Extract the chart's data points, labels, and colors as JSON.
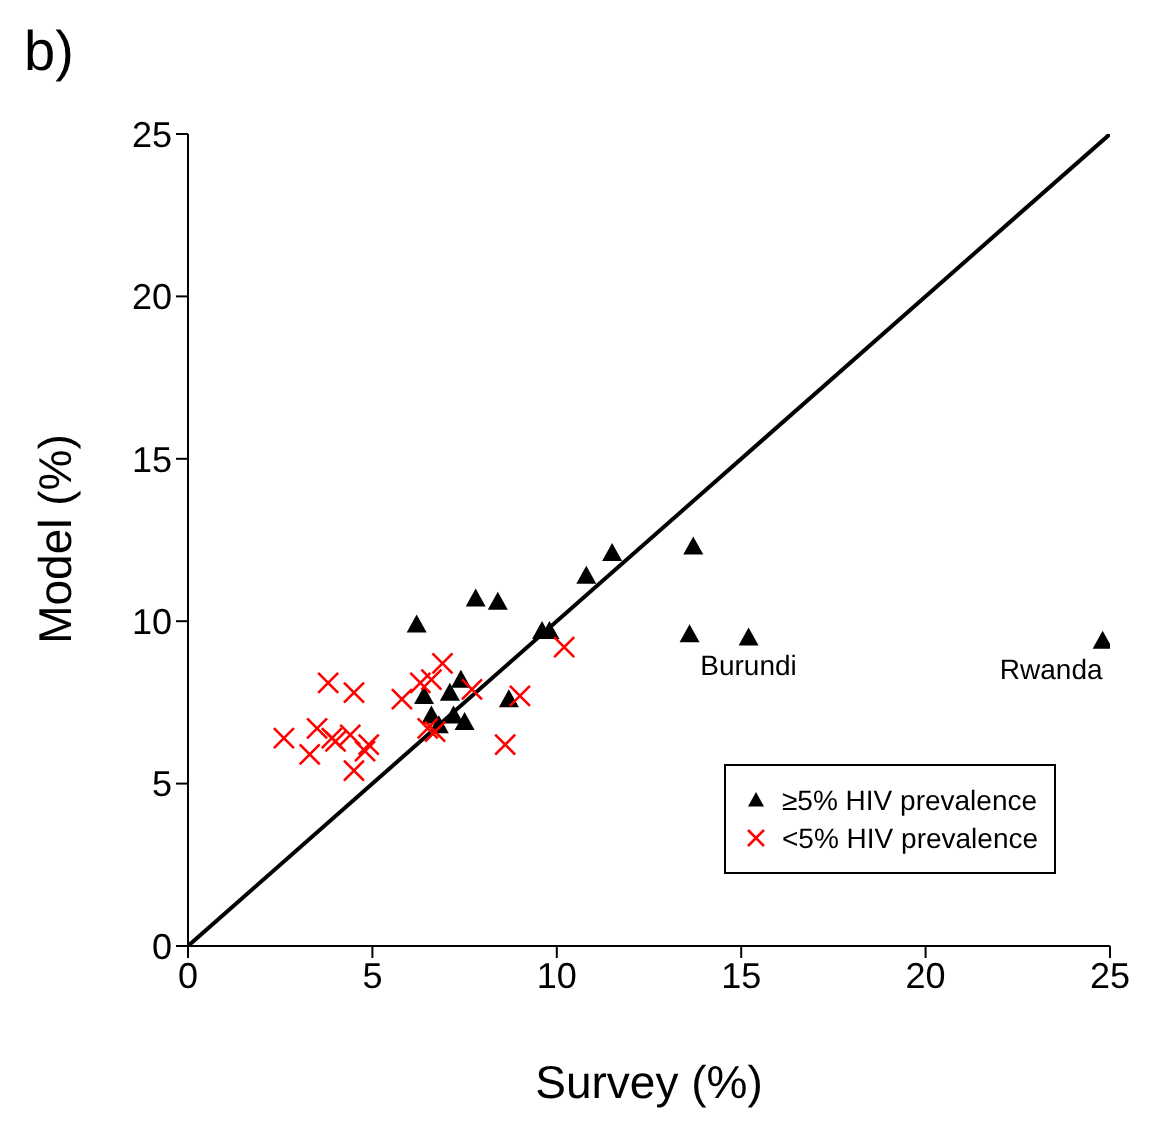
{
  "chart_data": {
    "type": "scatter",
    "title": "b)",
    "xlabel": "Survey (%)",
    "ylabel": "Model (%)",
    "xlim": [
      0,
      25
    ],
    "ylim": [
      0,
      25
    ],
    "xticks": [
      0,
      5,
      10,
      15,
      20,
      25
    ],
    "yticks": [
      0,
      5,
      10,
      15,
      20,
      25
    ],
    "grid": false,
    "legend": "bottom right",
    "series": [
      {
        "name": "≥5% HIV prevalence",
        "color": "#000000",
        "marker": "triangle",
        "x": [
          6.2,
          7.8,
          8.4,
          10.8,
          11.5,
          7.4,
          7.1,
          6.4,
          8.7,
          6.6,
          6.8,
          7.2,
          7.5,
          9.6,
          9.8,
          13.7,
          13.6,
          15.2,
          24.8
        ],
        "values": [
          9.9,
          10.7,
          10.6,
          11.4,
          12.1,
          8.2,
          7.8,
          7.7,
          7.6,
          7.1,
          6.8,
          7.1,
          6.9,
          9.7,
          9.7,
          12.3,
          9.6,
          9.5,
          9.4
        ]
      },
      {
        "name": "<5% HIV prevalence",
        "color": "#ff0000",
        "marker": "cross",
        "x": [
          2.6,
          3.3,
          3.5,
          3.8,
          3.9,
          4.0,
          4.4,
          4.5,
          4.5,
          4.8,
          4.9,
          5.8,
          6.3,
          6.6,
          6.9,
          6.5,
          6.7,
          7.7,
          8.6,
          9.0,
          10.2
        ],
        "values": [
          6.4,
          5.9,
          6.7,
          8.1,
          6.4,
          6.3,
          6.5,
          7.8,
          5.4,
          6.0,
          6.2,
          7.6,
          8.1,
          8.2,
          8.7,
          6.7,
          6.6,
          7.9,
          6.2,
          7.7,
          9.2
        ]
      },
      {
        "type": "line",
        "color": "#000000",
        "marker": "none",
        "x": [
          0,
          25
        ],
        "values": [
          0,
          25
        ]
      }
    ],
    "annotations": [
      {
        "text": "Burundi",
        "x": 15.2,
        "y": 9.5
      },
      {
        "text": "Rwanda",
        "x": 24.8,
        "y": 9.4
      }
    ]
  }
}
